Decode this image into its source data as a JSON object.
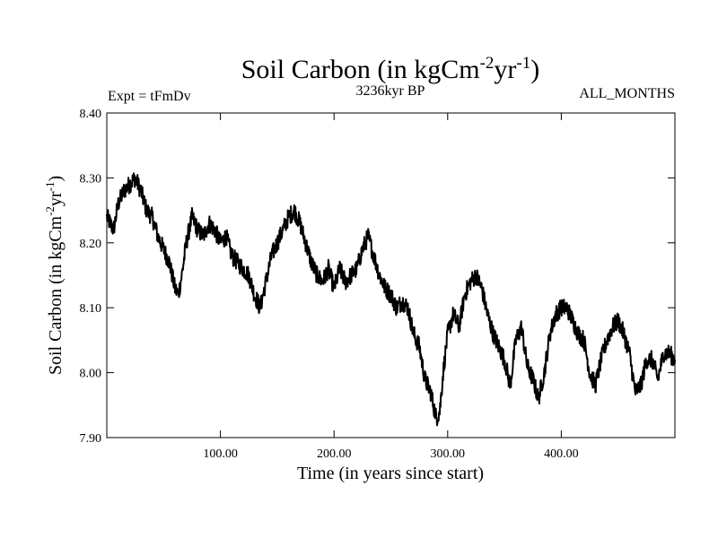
{
  "chart_data": {
    "type": "line",
    "title_main": "Soil Carbon (in kgCm",
    "title_sup1": "-2",
    "title_mid": "yr",
    "title_sup2": "-1",
    "title_end": ")",
    "expt_label": "Expt = tFmDv",
    "period_label": "3236kyr BP",
    "months_label": "ALL_MONTHS",
    "xlabel": "Time (in years since start)",
    "ylabel_main": "Soil Carbon (in kgCm",
    "ylabel_sup1": "-2",
    "ylabel_mid": "yr",
    "ylabel_sup2": "-1",
    "ylabel_end": ")",
    "xlim": [
      0,
      500
    ],
    "ylim": [
      7.9,
      8.4
    ],
    "x_ticks": [
      100,
      200,
      300,
      400
    ],
    "x_tick_labels": [
      "100.00",
      "200.00",
      "300.00",
      "400.00"
    ],
    "y_ticks": [
      7.9,
      8.0,
      8.1,
      8.2,
      8.3,
      8.4
    ],
    "y_tick_labels": [
      "7.90",
      "8.00",
      "8.10",
      "8.20",
      "8.30",
      "8.40"
    ],
    "series": [
      {
        "name": "Soil Carbon",
        "color": "#000000",
        "x": [
          0,
          3,
          6,
          10,
          15,
          20,
          25,
          30,
          35,
          40,
          45,
          50,
          55,
          60,
          63,
          66,
          70,
          75,
          80,
          85,
          90,
          95,
          100,
          105,
          110,
          115,
          120,
          125,
          130,
          135,
          140,
          145,
          150,
          155,
          160,
          165,
          170,
          175,
          180,
          185,
          190,
          195,
          200,
          205,
          210,
          215,
          220,
          225,
          230,
          235,
          240,
          245,
          250,
          255,
          260,
          265,
          270,
          275,
          280,
          285,
          290,
          293,
          296,
          300,
          305,
          310,
          315,
          320,
          325,
          330,
          335,
          340,
          345,
          350,
          355,
          360,
          365,
          370,
          375,
          380,
          385,
          390,
          395,
          400,
          405,
          410,
          415,
          420,
          425,
          430,
          435,
          440,
          445,
          450,
          455,
          460,
          465,
          470,
          475,
          480,
          485,
          490,
          495,
          500
        ],
        "y": [
          8.24,
          8.23,
          8.22,
          8.26,
          8.28,
          8.29,
          8.3,
          8.28,
          8.25,
          8.24,
          8.21,
          8.19,
          8.17,
          8.13,
          8.12,
          8.15,
          8.2,
          8.24,
          8.22,
          8.21,
          8.23,
          8.22,
          8.2,
          8.21,
          8.18,
          8.17,
          8.16,
          8.15,
          8.12,
          8.1,
          8.14,
          8.18,
          8.2,
          8.22,
          8.24,
          8.25,
          8.23,
          8.2,
          8.17,
          8.15,
          8.14,
          8.16,
          8.13,
          8.16,
          8.14,
          8.15,
          8.16,
          8.19,
          8.21,
          8.18,
          8.15,
          8.13,
          8.12,
          8.1,
          8.11,
          8.1,
          8.06,
          8.04,
          7.99,
          7.97,
          7.93,
          7.94,
          8.0,
          8.06,
          8.09,
          8.07,
          8.12,
          8.14,
          8.15,
          8.13,
          8.09,
          8.06,
          8.04,
          8.02,
          7.98,
          8.05,
          8.07,
          8.01,
          7.99,
          7.96,
          8.0,
          8.06,
          8.09,
          8.1,
          8.1,
          8.08,
          8.06,
          8.05,
          8.0,
          7.98,
          8.02,
          8.05,
          8.07,
          8.08,
          8.06,
          8.03,
          7.97,
          7.98,
          8.02,
          8.02,
          7.99,
          8.03,
          8.03,
          8.02
        ]
      }
    ]
  }
}
